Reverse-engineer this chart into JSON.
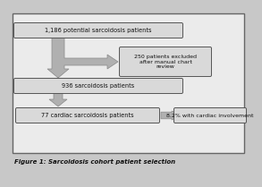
{
  "box1_text": "1,186 potential sarcoidosis patients",
  "box2_text": "250 patients excluded\nafter manual chart\nreview",
  "box3_text": "936 sarcoidosis patients",
  "box4_text": "77 cardiac sarcoidosis patients",
  "box5_text": "8.2% with cardiac involvement",
  "figure_caption": "Figure 1: Sarcoidosis cohort patient selection",
  "bg_color": "#c8c8c8",
  "inner_bg": "#ebebeb",
  "box_fill": "#d9d9d9",
  "box_edge": "#555555",
  "arrow_fill": "#b0b0b0",
  "arrow_edge": "#888888",
  "text_color": "#111111"
}
